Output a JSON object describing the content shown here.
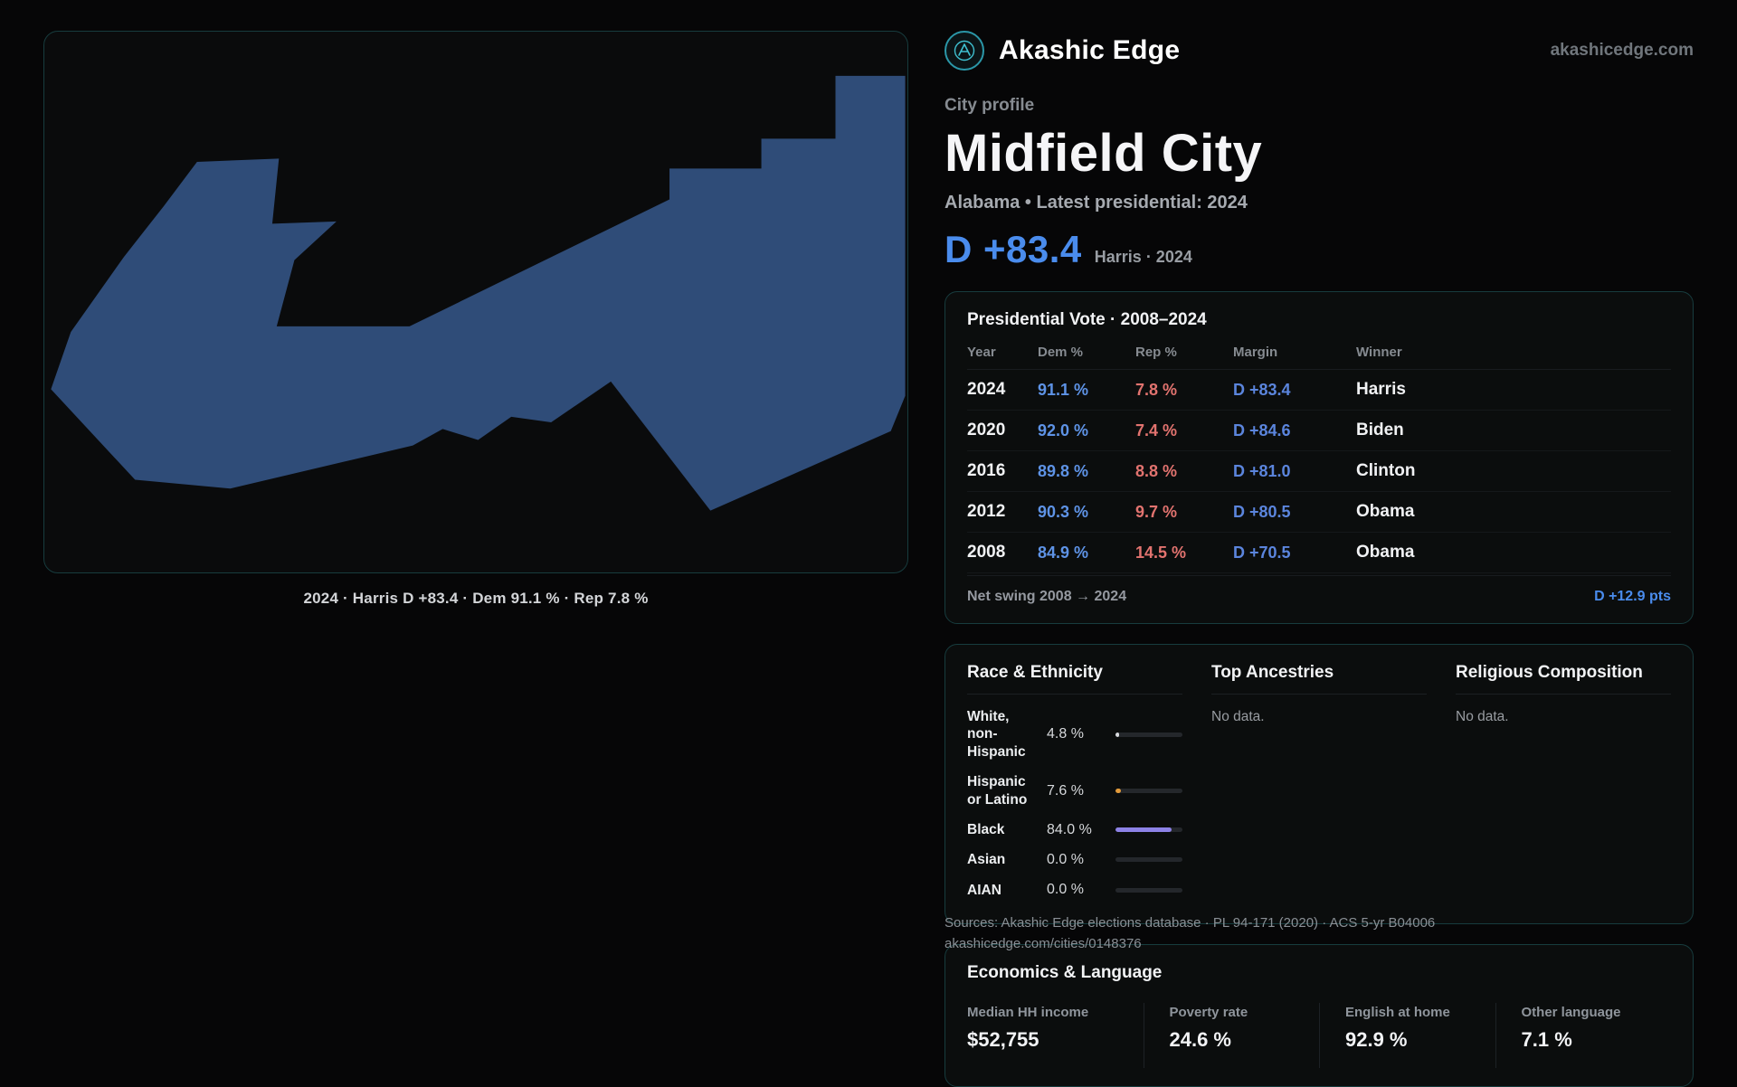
{
  "brand": {
    "name": "Akashic Edge",
    "site": "akashicedge.com"
  },
  "profile": {
    "kicker": "City profile",
    "city": "Midfield City",
    "subtitle": "Alabama • Latest presidential: 2024",
    "headline_margin": "D +83.4",
    "headline_note": "Harris · 2024"
  },
  "map": {
    "caption": "2024 · Harris D +83.4 · Dem 91.1 % · Rep 7.8 %",
    "fill_color": "#2f4c78"
  },
  "presidential": {
    "title": "Presidential Vote · 2008–2024",
    "columns": [
      "Year",
      "Dem %",
      "Rep %",
      "Margin",
      "Winner"
    ],
    "rows": [
      {
        "year": "2024",
        "dem": "91.1 %",
        "rep": "7.8 %",
        "margin": "D +83.4",
        "winner": "Harris"
      },
      {
        "year": "2020",
        "dem": "92.0 %",
        "rep": "7.4 %",
        "margin": "D +84.6",
        "winner": "Biden"
      },
      {
        "year": "2016",
        "dem": "89.8 %",
        "rep": "8.8 %",
        "margin": "D +81.0",
        "winner": "Clinton"
      },
      {
        "year": "2012",
        "dem": "90.3 %",
        "rep": "9.7 %",
        "margin": "D +80.5",
        "winner": "Obama"
      },
      {
        "year": "2008",
        "dem": "84.9 %",
        "rep": "14.5 %",
        "margin": "D +70.5",
        "winner": "Obama"
      }
    ],
    "net_swing_label": "Net swing 2008 → 2024",
    "net_swing_value": "D +12.9 pts"
  },
  "demographics": {
    "race": {
      "title": "Race & Ethnicity",
      "rows": [
        {
          "label": "White, non-Hispanic",
          "value": "4.8 %",
          "pct": 4.8,
          "color": "#d8dade"
        },
        {
          "label": "Hispanic or Latino",
          "value": "7.6 %",
          "pct": 7.6,
          "color": "#e39b3b"
        },
        {
          "label": "Black",
          "value": "84.0 %",
          "pct": 84.0,
          "color": "#8d82e6"
        },
        {
          "label": "Asian",
          "value": "0.0 %",
          "pct": 0,
          "color": "#3a3d42"
        },
        {
          "label": "AIAN",
          "value": "0.0 %",
          "pct": 0,
          "color": "#3a3d42"
        }
      ]
    },
    "ancestries": {
      "title": "Top Ancestries",
      "empty": "No data."
    },
    "religion": {
      "title": "Religious Composition",
      "empty": "No data."
    }
  },
  "economics": {
    "title": "Economics & Language",
    "stats": [
      {
        "label": "Median HH income",
        "value": "$52,755"
      },
      {
        "label": "Poverty rate",
        "value": "24.6 %"
      },
      {
        "label": "English at home",
        "value": "92.9 %"
      },
      {
        "label": "Other language",
        "value": "7.1 %"
      }
    ]
  },
  "footer": {
    "sources": "Sources: Akashic Edge elections database · PL 94-171 (2020) · ACS 5-yr B04006",
    "permalink": "akashicedge.com/cities/0148376"
  },
  "colors": {
    "dem_blue": "#5e93e6",
    "rep_red": "#e2736f",
    "margin_blue": "#5b85dd",
    "accent_blue": "#4a8ced",
    "panel_border": "#173c3e",
    "map_fill": "#2f4c78",
    "bar_black": "#8d82e6",
    "bar_hispanic": "#e39b3b",
    "bar_white": "#d8dade",
    "logo_teal": "#3fc0d0"
  }
}
